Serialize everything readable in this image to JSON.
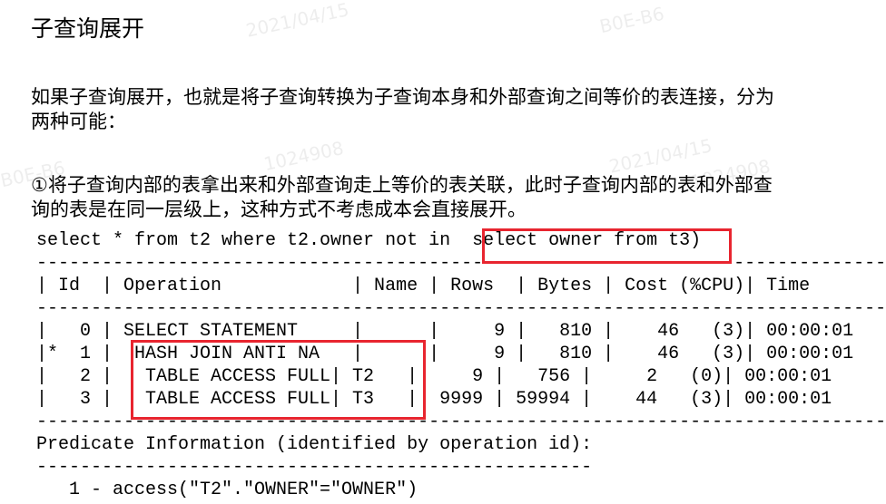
{
  "header": {
    "title": "子查询展开"
  },
  "paragraphs": [
    {
      "lines": [
        "如果子查询展开，也就是将子查询转换为子查询本身和外部查询之间等价的表连接，分为",
        "两种可能："
      ]
    },
    {
      "lines": [
        "①将子查询内部的表拿出来和外部查询走上等价的表关联，此时子查询内部的表和外部查",
        "询的表是在同一层级上，这种方式不考虑成本会直接展开。"
      ]
    }
  ],
  "code": {
    "lines": [
      "select * from t2 where t2.owner not in  select owner from t3)",
      "-------------------------------------------------------------------------------------",
      "| Id  | Operation            | Name | Rows  | Bytes | Cost (%CPU)| Time",
      "-------------------------------------------------------------------------------------",
      "|   0 | SELECT STATEMENT     |      |     9 |   810 |    46   (3)| 00:00:01",
      "|*  1 |  HASH JOIN ANTI NA   |      |     9 |   810 |    46   (3)| 00:00:01",
      "|   2 |   TABLE ACCESS FULL| T2   |     9 |   756 |     2   (0)| 00:00:01",
      "|   3 |   TABLE ACCESS FULL| T3   |  9999 | 59994 |    44   (3)| 00:00:01",
      "-------------------------------------------------------------------------------------",
      "Predicate Information (identified by operation id):",
      "---------------------------------------------------",
      "   1 - access(\"T2\".\"OWNER\"=\"OWNER\")"
    ]
  },
  "watermarks": [
    "2021/04/15",
    "B0E-B6",
    "1024908",
    "2021/04/15",
    "B0E-B6",
    "1024908"
  ]
}
